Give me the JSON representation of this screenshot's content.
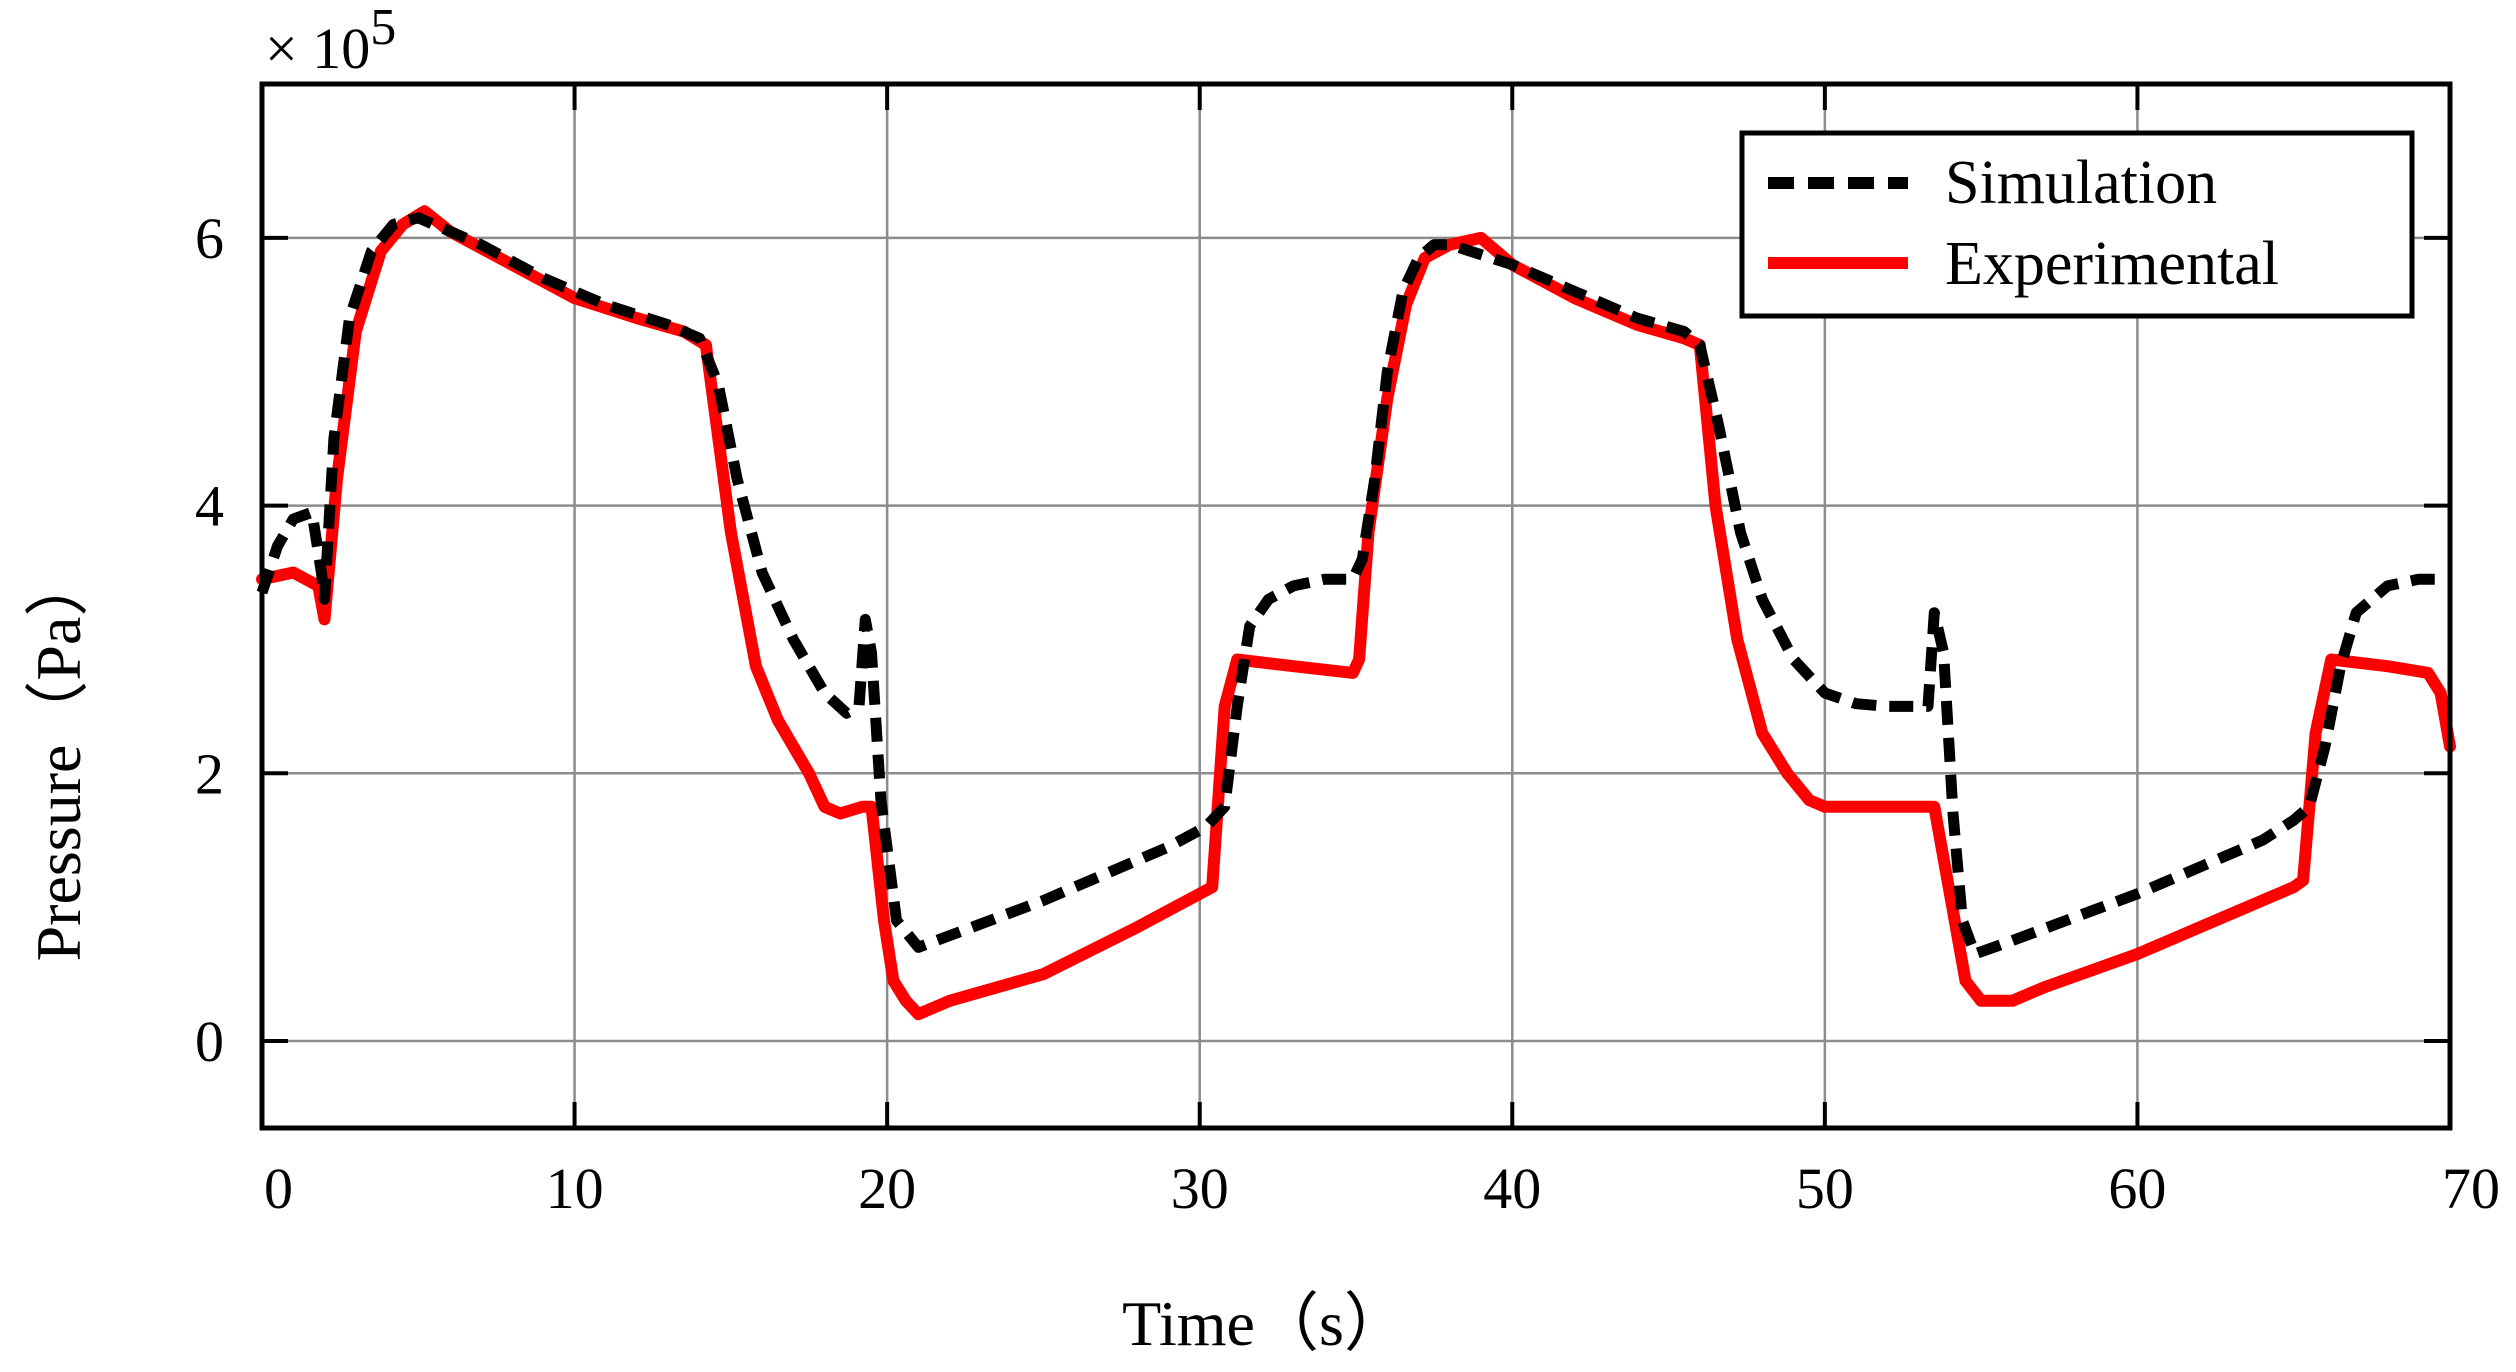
{
  "chart_data": {
    "type": "line",
    "xlabel": "Time（s）",
    "ylabel": "Pressure（Pa）",
    "y_multiplier": "× 10",
    "y_multiplier_exp": "5",
    "xlim": [
      0,
      70
    ],
    "ylim": [
      -0.65,
      7.15
    ],
    "x_ticks": [
      0,
      10,
      20,
      30,
      40,
      50,
      60,
      70
    ],
    "x_tick_labels": [
      "0",
      "10",
      "20",
      "30",
      "40",
      "50",
      "60",
      "70"
    ],
    "y_ticks": [
      0,
      2,
      4,
      6
    ],
    "y_tick_labels": [
      "0",
      "2",
      "4",
      "6"
    ],
    "grid": true,
    "legend_position": "top-right",
    "series": [
      {
        "name": "Simulation",
        "style": "dashed",
        "color": "#000000",
        "x": [
          0,
          0.5,
          1,
          1.6,
          1.9,
          2.0,
          2.3,
          2.8,
          3.5,
          4.2,
          5,
          7,
          9,
          11,
          13,
          14,
          14.6,
          15.2,
          16,
          17,
          18,
          18.7,
          19.1,
          19.3,
          19.5,
          19.8,
          20.3,
          21,
          25,
          29,
          30.2,
          30.8,
          31.2,
          31.6,
          32.2,
          33,
          34,
          34.9,
          35.2,
          35.6,
          36,
          36.5,
          37,
          37.5,
          38,
          40,
          42,
          44,
          45.5,
          46,
          46.6,
          47.3,
          48,
          49,
          50,
          51,
          52,
          53,
          53.3,
          53.5,
          53.8,
          54.1,
          54.4,
          54.8,
          56,
          60,
          64,
          65,
          65.5,
          66,
          66.5,
          67,
          68,
          69,
          70
        ],
        "y": [
          3.35,
          3.7,
          3.9,
          3.95,
          3.5,
          3.3,
          4.5,
          5.4,
          5.9,
          6.1,
          6.15,
          5.95,
          5.7,
          5.5,
          5.35,
          5.25,
          4.9,
          4.2,
          3.5,
          3.0,
          2.6,
          2.45,
          2.5,
          3.15,
          2.9,
          1.8,
          0.9,
          0.7,
          1.05,
          1.45,
          1.6,
          1.75,
          2.5,
          3.1,
          3.3,
          3.4,
          3.45,
          3.45,
          3.6,
          4.2,
          5.0,
          5.6,
          5.85,
          5.95,
          5.95,
          5.8,
          5.6,
          5.4,
          5.3,
          5.2,
          4.6,
          3.8,
          3.3,
          2.85,
          2.6,
          2.52,
          2.5,
          2.5,
          2.5,
          3.2,
          2.9,
          1.7,
          0.9,
          0.65,
          0.75,
          1.1,
          1.5,
          1.65,
          1.75,
          2.2,
          2.8,
          3.2,
          3.4,
          3.45,
          3.45
        ],
        "labels": "legend"
      },
      {
        "name": "Experimental",
        "style": "solid",
        "color": "#ff0000",
        "x": [
          0,
          1,
          1.8,
          2.0,
          2.4,
          3,
          3.8,
          4.5,
          5.2,
          6,
          8,
          10,
          12,
          13.5,
          14.2,
          15,
          15.8,
          16.5,
          17.5,
          18,
          18.5,
          19.2,
          19.5,
          19.9,
          20.2,
          20.6,
          21,
          21.5,
          22,
          25,
          28,
          30,
          30.4,
          30.8,
          31.2,
          33,
          34.9,
          35.1,
          35.4,
          36,
          36.6,
          37.2,
          38,
          39,
          40,
          42,
          44,
          45.5,
          46,
          46.5,
          47.2,
          48,
          48.8,
          49.5,
          50,
          53,
          53.5,
          54,
          54.5,
          55,
          55.5,
          56,
          57,
          60,
          63,
          65,
          65.3,
          65.7,
          66.2,
          68,
          69.3,
          69.7,
          70
        ],
        "y": [
          3.45,
          3.5,
          3.4,
          3.15,
          4.2,
          5.3,
          5.9,
          6.1,
          6.2,
          6.05,
          5.8,
          5.55,
          5.4,
          5.3,
          5.2,
          3.8,
          2.8,
          2.4,
          2.0,
          1.75,
          1.7,
          1.75,
          1.75,
          0.9,
          0.45,
          0.3,
          0.2,
          0.25,
          0.3,
          0.5,
          0.85,
          1.1,
          1.15,
          2.5,
          2.85,
          2.8,
          2.75,
          2.85,
          3.8,
          4.8,
          5.5,
          5.85,
          5.95,
          6.0,
          5.8,
          5.55,
          5.35,
          5.25,
          5.2,
          4.0,
          3.0,
          2.3,
          2.0,
          1.8,
          1.75,
          1.75,
          1.75,
          1.1,
          0.45,
          0.3,
          0.3,
          0.3,
          0.4,
          0.65,
          0.95,
          1.15,
          1.2,
          2.3,
          2.85,
          2.8,
          2.75,
          2.6,
          2.2
        ],
        "labels": "legend"
      }
    ]
  }
}
